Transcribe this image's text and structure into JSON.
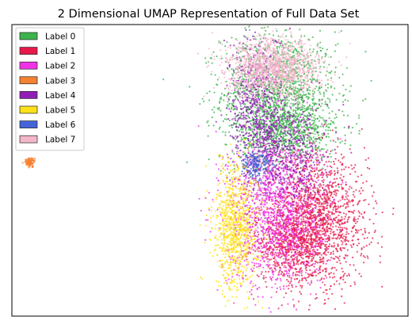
{
  "chart_data": {
    "type": "scatter",
    "title": "2 Dimensional UMAP Representation of Full Data Set",
    "xlabel": "",
    "ylabel": "",
    "ticks_visible": false,
    "grid": false,
    "legend_placement": "top-left",
    "xlim": [
      -10,
      10
    ],
    "ylim": [
      -10,
      10
    ],
    "series": [
      {
        "name": "Label 0",
        "color": "#3cb44b",
        "clusters": [
          {
            "cx": 3.5,
            "cy": 5.2,
            "sx": 1.45,
            "sy": 2.2,
            "n": 1500
          },
          {
            "cx": 3.8,
            "cy": 2.6,
            "sx": 1.3,
            "sy": 1.0,
            "n": 600
          }
        ]
      },
      {
        "name": "Label 1",
        "color": "#e6194b",
        "clusters": [
          {
            "cx": 5.3,
            "cy": -3.4,
            "sx": 1.3,
            "sy": 2.2,
            "n": 1700
          },
          {
            "cx": 4.0,
            "cy": -5.2,
            "sx": 0.9,
            "sy": 1.1,
            "n": 500
          }
        ]
      },
      {
        "name": "Label 2",
        "color": "#f032e6",
        "clusters": [
          {
            "cx": 3.3,
            "cy": -2.8,
            "sx": 1.2,
            "sy": 2.7,
            "n": 1300
          }
        ]
      },
      {
        "name": "Label 3",
        "color": "#f58231",
        "clusters": [
          {
            "cx": -9.1,
            "cy": 0.55,
            "sx": 0.12,
            "sy": 0.15,
            "n": 120
          }
        ]
      },
      {
        "name": "Label 4",
        "color": "#911eb4",
        "clusters": [
          {
            "cx": 2.4,
            "cy": 4.2,
            "sx": 0.7,
            "sy": 2.6,
            "n": 700
          },
          {
            "cx": 3.9,
            "cy": 1.0,
            "sx": 1.0,
            "sy": 1.8,
            "n": 500
          }
        ]
      },
      {
        "name": "Label 5",
        "color": "#ffe119",
        "clusters": [
          {
            "cx": 1.3,
            "cy": -3.9,
            "sx": 0.55,
            "sy": 2.2,
            "n": 900
          }
        ]
      },
      {
        "name": "Label 6",
        "color": "#4363d8",
        "clusters": [
          {
            "cx": 2.3,
            "cy": 0.4,
            "sx": 0.35,
            "sy": 0.45,
            "n": 150
          }
        ]
      },
      {
        "name": "Label 7",
        "color": "#f4b6c9",
        "clusters": [
          {
            "cx": 3.2,
            "cy": 7.0,
            "sx": 1.2,
            "sy": 1.0,
            "n": 1300
          }
        ]
      }
    ]
  }
}
